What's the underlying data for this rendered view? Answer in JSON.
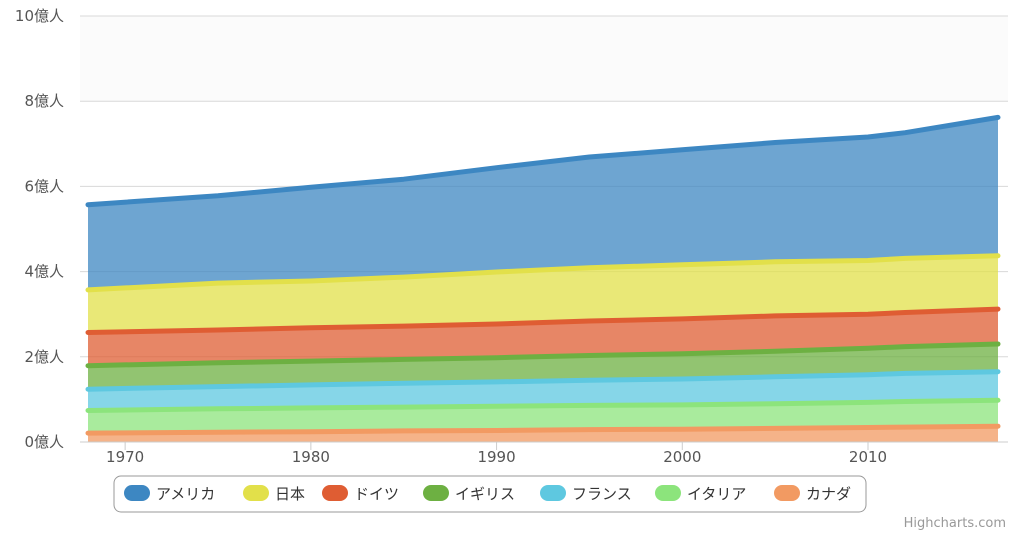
{
  "chart_data": {
    "type": "area",
    "stacked": true,
    "x": [
      1968,
      1975,
      1980,
      1985,
      1990,
      1995,
      2000,
      2005,
      2010,
      2012,
      2017
    ],
    "series": [
      {
        "name": "アメリカ",
        "color": "#3d87c2",
        "values": [
          2.0,
          2.05,
          2.2,
          2.3,
          2.45,
          2.6,
          2.7,
          2.8,
          2.9,
          2.95,
          3.25
        ]
      },
      {
        "name": "日本",
        "color": "#e2e04a",
        "values": [
          1.0,
          1.1,
          1.1,
          1.15,
          1.22,
          1.25,
          1.27,
          1.27,
          1.26,
          1.27,
          1.25
        ]
      },
      {
        "name": "ドイツ",
        "color": "#df5d33",
        "values": [
          0.78,
          0.77,
          0.78,
          0.78,
          0.79,
          0.81,
          0.82,
          0.83,
          0.8,
          0.8,
          0.82
        ]
      },
      {
        "name": "イギリス",
        "color": "#6db042",
        "values": [
          0.55,
          0.56,
          0.56,
          0.56,
          0.57,
          0.58,
          0.59,
          0.6,
          0.62,
          0.63,
          0.65
        ]
      },
      {
        "name": "フランス",
        "color": "#5ec8e0",
        "values": [
          0.5,
          0.52,
          0.54,
          0.56,
          0.57,
          0.59,
          0.61,
          0.63,
          0.65,
          0.66,
          0.67
        ]
      },
      {
        "name": "イタリア",
        "color": "#8ce47c",
        "values": [
          0.53,
          0.55,
          0.56,
          0.56,
          0.57,
          0.57,
          0.57,
          0.58,
          0.59,
          0.6,
          0.61
        ]
      },
      {
        "name": "カナダ",
        "color": "#f29a62",
        "values": [
          0.21,
          0.23,
          0.24,
          0.26,
          0.27,
          0.29,
          0.3,
          0.32,
          0.34,
          0.35,
          0.37
        ]
      }
    ],
    "ylim": [
      0,
      10
    ],
    "xlim": [
      1968,
      2017
    ],
    "y_ticks": [
      "0億人",
      "2億人",
      "4億人",
      "6億人",
      "8億人",
      "10億人"
    ],
    "y_tick_values": [
      0,
      2,
      4,
      6,
      8,
      10
    ],
    "x_ticks": [
      "1970",
      "1980",
      "1990",
      "2000",
      "2010"
    ],
    "x_tick_values": [
      1970,
      1980,
      1990,
      2000,
      2010
    ],
    "grid": true,
    "legend_position": "bottom-left"
  },
  "credit": "Highcharts.com"
}
